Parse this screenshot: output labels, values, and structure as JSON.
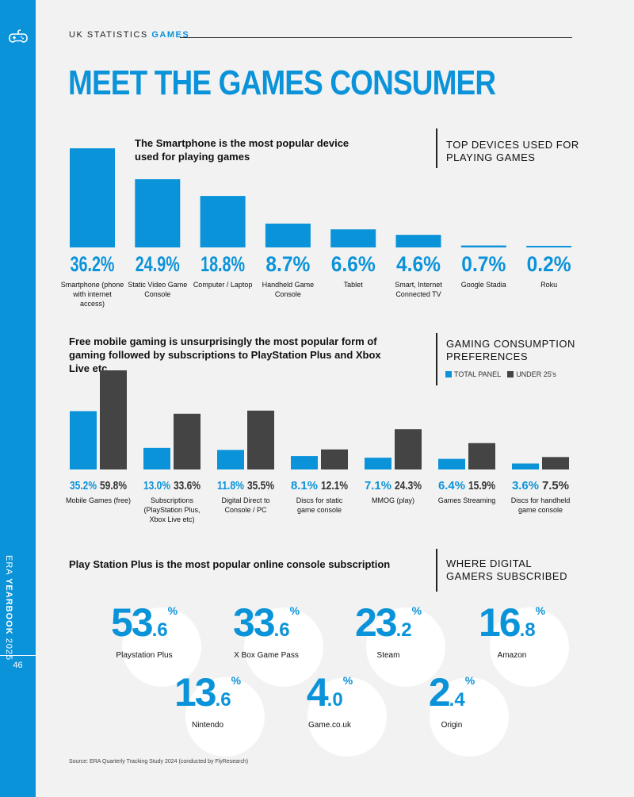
{
  "sidebar": {
    "yearbook_prefix": "ERA ",
    "yearbook_bold": "YEARBOOK",
    "yearbook_year": " 2025",
    "page_number": "46"
  },
  "header": {
    "label": "UK STATISTICS",
    "label_accent": "GAMES",
    "title": "MEET THE GAMES CONSUMER"
  },
  "section1": {
    "headline": "The Smartphone is the most popular device used for playing games",
    "label": "TOP DEVICES USED FOR PLAYING GAMES"
  },
  "section2": {
    "headline": "Free mobile gaming is unsurprisingly the most popular form of gaming followed by subscriptions to PlayStation Plus and Xbox Live etc",
    "label": "GAMING CONSUMPTION PREFERENCES",
    "legend": [
      "TOTAL PANEL",
      "UNDER 25's"
    ]
  },
  "section3": {
    "headline": "Play Station Plus is the most popular online console subscription",
    "label": "WHERE DIGITAL GAMERS SUBSCRIBED"
  },
  "colors": {
    "accent": "#0b93d9",
    "dark": "#444444"
  },
  "chart_data": [
    {
      "type": "bar",
      "title": "TOP DEVICES USED FOR PLAYING GAMES",
      "categories": [
        "Smartphone (phone with internet access)",
        "Static Video Game Console",
        "Computer / Laptop",
        "Handheld Game Console",
        "Tablet",
        "Smart, Internet Connected TV",
        "Google Stadia",
        "Roku"
      ],
      "values": [
        36.2,
        24.9,
        18.8,
        8.7,
        6.6,
        4.6,
        0.7,
        0.2
      ],
      "value_labels": [
        "36.2%",
        "24.9%",
        "18.8%",
        "8.7%",
        "6.6%",
        "4.6%",
        "0.7%",
        "0.2%"
      ],
      "ylim": [
        0,
        36.2
      ]
    },
    {
      "type": "bar",
      "title": "GAMING CONSUMPTION PREFERENCES",
      "categories": [
        "Mobile Games (free)",
        "Subscriptions (PlayStation Plus, Xbox Live etc)",
        "Digital Direct to Console / PC",
        "Discs for static game console",
        "MMOG (play)",
        "Games Streaming",
        "Discs for handheld game console"
      ],
      "series": [
        {
          "name": "TOTAL PANEL",
          "values": [
            35.2,
            13.0,
            11.8,
            8.1,
            7.1,
            6.4,
            3.6
          ],
          "labels": [
            "35.2%",
            "13.0%",
            "11.8%",
            "8.1%",
            "7.1%",
            "6.4%",
            "3.6%"
          ]
        },
        {
          "name": "UNDER 25's",
          "values": [
            59.8,
            33.6,
            35.5,
            12.1,
            24.3,
            15.9,
            7.5
          ],
          "labels": [
            "59.8%",
            "33.6%",
            "35.5%",
            "12.1%",
            "24.3%",
            "15.9%",
            "7.5%"
          ]
        }
      ],
      "ylim": [
        0,
        59.8
      ]
    },
    {
      "type": "table",
      "title": "WHERE DIGITAL GAMERS SUBSCRIBED",
      "items": [
        {
          "name": "Playstation Plus",
          "value": 53.6,
          "int": "53",
          "dec": ".6",
          "unit": "%"
        },
        {
          "name": "X Box Game Pass",
          "value": 33.6,
          "int": "33",
          "dec": ".6",
          "unit": "%"
        },
        {
          "name": "Steam",
          "value": 23.2,
          "int": "23",
          "dec": ".2",
          "unit": "%"
        },
        {
          "name": "Amazon",
          "value": 16.8,
          "int": "16",
          "dec": ".8",
          "unit": "%"
        },
        {
          "name": "Nintendo",
          "value": 13.6,
          "int": "13",
          "dec": ".6",
          "unit": "%"
        },
        {
          "name": "Game.co.uk",
          "value": 4.0,
          "int": "4",
          "dec": ".0",
          "unit": "%"
        },
        {
          "name": "Origin",
          "value": 2.4,
          "int": "2",
          "dec": ".4",
          "unit": "%"
        }
      ]
    }
  ],
  "source": "Source: ERA Quarterly Tracking Study 2024 (conducted by FlyResearch)"
}
